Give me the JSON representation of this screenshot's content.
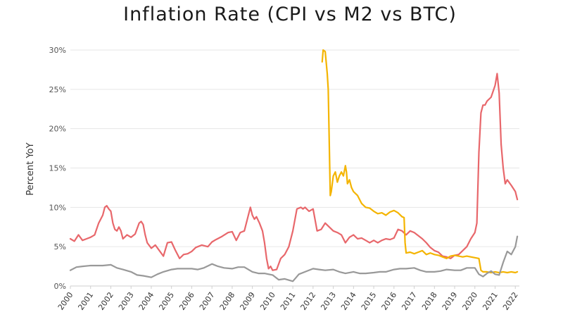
{
  "chart_data": {
    "type": "line",
    "title": "Inflation Rate (CPI vs M2 vs BTC)",
    "ylabel": "Percent YoY",
    "xlabel": "",
    "xlim": [
      2000.0,
      2022.2
    ],
    "ylim": [
      0,
      30
    ],
    "y_ticks": [
      0,
      5,
      10,
      15,
      20,
      25,
      30
    ],
    "y_tick_labels": [
      "0%",
      "5%",
      "10%",
      "15%",
      "20%",
      "25%",
      "30%"
    ],
    "x_ticks": [
      "2000",
      "2001",
      "2002",
      "2003",
      "2004",
      "2005",
      "2006",
      "2007",
      "2008",
      "2009",
      "2010",
      "2011",
      "2012",
      "2013",
      "2014",
      "2015",
      "2016",
      "2017",
      "2018",
      "2019",
      "2020",
      "2021",
      "2022"
    ],
    "grid": "horizontal",
    "series": [
      {
        "key": "m2",
        "color": "#e8676b",
        "x": [
          2000.0,
          2000.2,
          2000.4,
          2000.6,
          2000.8,
          2001.0,
          2001.2,
          2001.4,
          2001.5,
          2001.6,
          2001.7,
          2001.8,
          2001.9,
          2002.0,
          2002.1,
          2002.2,
          2002.3,
          2002.4,
          2002.5,
          2002.6,
          2002.8,
          2003.0,
          2003.2,
          2003.4,
          2003.5,
          2003.6,
          2003.7,
          2003.8,
          2004.0,
          2004.2,
          2004.4,
          2004.6,
          2004.8,
          2005.0,
          2005.2,
          2005.4,
          2005.6,
          2005.8,
          2006.0,
          2006.2,
          2006.5,
          2006.8,
          2007.0,
          2007.2,
          2007.5,
          2007.8,
          2008.0,
          2008.2,
          2008.4,
          2008.6,
          2008.8,
          2008.9,
          2009.0,
          2009.1,
          2009.2,
          2009.35,
          2009.5,
          2009.6,
          2009.7,
          2009.8,
          2009.9,
          2010.0,
          2010.2,
          2010.4,
          2010.6,
          2010.8,
          2011.0,
          2011.2,
          2011.4,
          2011.5,
          2011.6,
          2011.8,
          2012.0,
          2012.2,
          2012.4,
          2012.6,
          2012.8,
          2013.0,
          2013.2,
          2013.4,
          2013.6,
          2013.8,
          2014.0,
          2014.2,
          2014.4,
          2014.6,
          2014.8,
          2015.0,
          2015.2,
          2015.4,
          2015.6,
          2015.8,
          2016.0,
          2016.2,
          2016.4,
          2016.6,
          2016.8,
          2017.0,
          2017.2,
          2017.4,
          2017.6,
          2017.8,
          2018.0,
          2018.2,
          2018.4,
          2018.6,
          2018.8,
          2019.0,
          2019.2,
          2019.4,
          2019.6,
          2019.8,
          2020.0,
          2020.1,
          2020.2,
          2020.3,
          2020.4,
          2020.5,
          2020.6,
          2020.8,
          2021.0,
          2021.1,
          2021.2,
          2021.3,
          2021.4,
          2021.5,
          2021.6,
          2021.8,
          2022.0,
          2022.1
        ],
        "y": [
          6.0,
          5.7,
          6.5,
          5.8,
          6.0,
          6.2,
          6.5,
          8.0,
          8.5,
          9.0,
          10.0,
          10.2,
          9.8,
          9.5,
          8.0,
          7.2,
          7.0,
          7.5,
          7.0,
          6.0,
          6.5,
          6.2,
          6.6,
          8.0,
          8.2,
          7.8,
          6.5,
          5.5,
          4.8,
          5.2,
          4.5,
          3.8,
          5.5,
          5.6,
          4.5,
          3.5,
          4.0,
          4.1,
          4.4,
          4.9,
          5.2,
          5.0,
          5.6,
          5.9,
          6.3,
          6.8,
          6.9,
          5.8,
          6.8,
          7.0,
          9.0,
          10.0,
          9.0,
          8.5,
          8.8,
          8.0,
          7.0,
          5.5,
          3.5,
          2.2,
          2.5,
          2.0,
          2.1,
          3.5,
          4.0,
          5.0,
          7.0,
          9.8,
          10.0,
          9.8,
          10.0,
          9.5,
          9.8,
          7.0,
          7.2,
          8.0,
          7.5,
          7.0,
          6.8,
          6.5,
          5.5,
          6.2,
          6.5,
          6.0,
          6.1,
          5.8,
          5.5,
          5.8,
          5.5,
          5.8,
          6.0,
          5.9,
          6.1,
          7.2,
          7.0,
          6.5,
          7.0,
          6.8,
          6.4,
          6.0,
          5.5,
          4.9,
          4.5,
          4.3,
          3.8,
          3.7,
          3.5,
          3.9,
          4.0,
          4.5,
          5.0,
          6.0,
          6.8,
          8.0,
          17.0,
          22.0,
          23.0,
          23.0,
          23.5,
          24.0,
          25.5,
          27.0,
          24.5,
          18.0,
          15.0,
          13.0,
          13.5,
          12.8,
          12.0,
          11.0
        ]
      },
      {
        "key": "btc",
        "color": "#f4b400",
        "x": [
          2012.45,
          2012.5,
          2012.6,
          2012.7,
          2012.75,
          2012.85,
          2012.9,
          2013.0,
          2013.1,
          2013.2,
          2013.3,
          2013.4,
          2013.5,
          2013.6,
          2013.65,
          2013.7,
          2013.8,
          2013.9,
          2014.0,
          2014.2,
          2014.4,
          2014.6,
          2014.8,
          2015.0,
          2015.2,
          2015.4,
          2015.6,
          2015.8,
          2016.0,
          2016.2,
          2016.4,
          2016.5,
          2016.55,
          2016.6,
          2016.8,
          2017.0,
          2017.2,
          2017.4,
          2017.6,
          2017.8,
          2018.0,
          2018.2,
          2018.4,
          2018.6,
          2018.8,
          2019.0,
          2019.2,
          2019.4,
          2019.6,
          2019.8,
          2020.0,
          2020.2,
          2020.3,
          2020.4,
          2020.6,
          2020.8,
          2021.0,
          2021.2,
          2021.4,
          2021.6,
          2021.8,
          2022.0,
          2022.1
        ],
        "y": [
          28.5,
          30.0,
          29.8,
          27.0,
          25.0,
          11.5,
          12.0,
          14.0,
          14.5,
          13.2,
          14.0,
          14.5,
          14.0,
          15.3,
          14.5,
          13.0,
          13.5,
          12.5,
          12.0,
          11.5,
          10.5,
          10.0,
          9.9,
          9.5,
          9.2,
          9.3,
          9.0,
          9.4,
          9.6,
          9.3,
          8.8,
          8.7,
          5.5,
          4.2,
          4.3,
          4.1,
          4.3,
          4.5,
          4.0,
          4.2,
          4.0,
          3.9,
          3.7,
          3.5,
          3.8,
          3.9,
          3.8,
          3.7,
          3.8,
          3.7,
          3.6,
          3.5,
          2.0,
          1.8,
          1.8,
          1.7,
          1.8,
          1.7,
          1.8,
          1.7,
          1.8,
          1.7,
          1.8
        ]
      },
      {
        "key": "cpi",
        "color": "#999999",
        "x": [
          2000.0,
          2000.3,
          2000.6,
          2001.0,
          2001.3,
          2001.6,
          2002.0,
          2002.3,
          2002.6,
          2003.0,
          2003.3,
          2003.6,
          2004.0,
          2004.3,
          2004.6,
          2005.0,
          2005.3,
          2005.6,
          2006.0,
          2006.3,
          2006.6,
          2007.0,
          2007.3,
          2007.6,
          2008.0,
          2008.3,
          2008.6,
          2009.0,
          2009.3,
          2009.6,
          2010.0,
          2010.3,
          2010.6,
          2011.0,
          2011.3,
          2011.6,
          2012.0,
          2012.3,
          2012.6,
          2013.0,
          2013.3,
          2013.6,
          2014.0,
          2014.3,
          2014.6,
          2015.0,
          2015.3,
          2015.6,
          2016.0,
          2016.3,
          2016.6,
          2017.0,
          2017.3,
          2017.6,
          2018.0,
          2018.3,
          2018.6,
          2019.0,
          2019.3,
          2019.6,
          2020.0,
          2020.2,
          2020.4,
          2020.6,
          2020.8,
          2021.0,
          2021.2,
          2021.4,
          2021.6,
          2021.8,
          2022.0,
          2022.1
        ],
        "y": [
          2.0,
          2.4,
          2.5,
          2.6,
          2.6,
          2.6,
          2.7,
          2.3,
          2.1,
          1.8,
          1.4,
          1.3,
          1.1,
          1.5,
          1.8,
          2.1,
          2.2,
          2.2,
          2.2,
          2.1,
          2.3,
          2.8,
          2.5,
          2.3,
          2.2,
          2.4,
          2.4,
          1.8,
          1.6,
          1.6,
          1.4,
          0.8,
          0.9,
          0.6,
          1.5,
          1.8,
          2.2,
          2.1,
          2.0,
          2.1,
          1.8,
          1.6,
          1.8,
          1.6,
          1.6,
          1.7,
          1.8,
          1.8,
          2.1,
          2.2,
          2.2,
          2.3,
          2.0,
          1.8,
          1.8,
          1.9,
          2.1,
          2.0,
          2.0,
          2.3,
          2.3,
          1.5,
          1.2,
          1.6,
          1.9,
          1.5,
          1.4,
          3.0,
          4.4,
          4.0,
          5.0,
          6.3
        ]
      }
    ]
  }
}
